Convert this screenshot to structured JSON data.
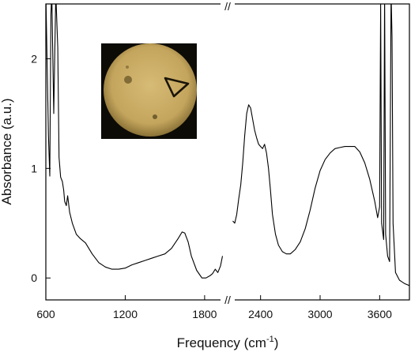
{
  "chart_data": {
    "type": "line",
    "title": "",
    "xlabel": "Frequency (cm",
    "xlabel_sup": "-1",
    "xlabel_close": ")",
    "ylabel": "Absorbance (a.u.)",
    "axis_break": "//",
    "xlim_segments": [
      [
        600,
        1950
      ],
      [
        2100,
        3900
      ]
    ],
    "ylim": [
      -0.2,
      2.5
    ],
    "grid": false,
    "x_ticks": [
      "600",
      "1200",
      "1800",
      "2400",
      "3000",
      "3600"
    ],
    "y_ticks": [
      "0",
      "1",
      "2"
    ],
    "series": [
      {
        "color": "#000000",
        "segments": [
          [
            [
              600,
              2.6
            ],
            [
              620,
              1.3
            ],
            [
              630,
              0.93
            ],
            [
              638,
              2.4
            ],
            [
              645,
              2.6
            ],
            [
              660,
              1.5
            ],
            [
              675,
              2.6
            ],
            [
              690,
              2.1
            ],
            [
              700,
              1.1
            ],
            [
              712,
              0.92
            ],
            [
              725,
              0.88
            ],
            [
              735,
              0.8
            ],
            [
              742,
              0.7
            ],
            [
              755,
              0.66
            ],
            [
              765,
              0.75
            ],
            [
              780,
              0.6
            ],
            [
              800,
              0.5
            ],
            [
              830,
              0.4
            ],
            [
              860,
              0.36
            ],
            [
              900,
              0.32
            ],
            [
              950,
              0.22
            ],
            [
              1000,
              0.14
            ],
            [
              1050,
              0.1
            ],
            [
              1100,
              0.08
            ],
            [
              1150,
              0.08
            ],
            [
              1200,
              0.09
            ],
            [
              1250,
              0.12
            ],
            [
              1300,
              0.14
            ],
            [
              1350,
              0.16
            ],
            [
              1400,
              0.18
            ],
            [
              1450,
              0.2
            ],
            [
              1500,
              0.22
            ],
            [
              1550,
              0.27
            ],
            [
              1600,
              0.36
            ],
            [
              1630,
              0.42
            ],
            [
              1650,
              0.41
            ],
            [
              1675,
              0.33
            ],
            [
              1700,
              0.2
            ],
            [
              1740,
              0.07
            ],
            [
              1780,
              0.0
            ],
            [
              1810,
              0.0
            ],
            [
              1840,
              0.02
            ],
            [
              1860,
              0.04
            ],
            [
              1880,
              0.08
            ],
            [
              1900,
              0.05
            ],
            [
              1920,
              0.11
            ],
            [
              1935,
              0.2
            ]
          ],
          [
            [
              2120,
              0.52
            ],
            [
              2140,
              0.5
            ],
            [
              2160,
              0.58
            ],
            [
              2180,
              0.72
            ],
            [
              2200,
              0.85
            ],
            [
              2220,
              1.05
            ],
            [
              2240,
              1.3
            ],
            [
              2260,
              1.5
            ],
            [
              2280,
              1.58
            ],
            [
              2300,
              1.55
            ],
            [
              2320,
              1.45
            ],
            [
              2340,
              1.35
            ],
            [
              2360,
              1.28
            ],
            [
              2380,
              1.22
            ],
            [
              2400,
              1.2
            ],
            [
              2420,
              1.18
            ],
            [
              2440,
              1.22
            ],
            [
              2460,
              1.14
            ],
            [
              2480,
              1.0
            ],
            [
              2500,
              0.8
            ],
            [
              2520,
              0.58
            ],
            [
              2550,
              0.4
            ],
            [
              2580,
              0.3
            ],
            [
              2620,
              0.24
            ],
            [
              2660,
              0.22
            ],
            [
              2700,
              0.22
            ],
            [
              2750,
              0.26
            ],
            [
              2800,
              0.33
            ],
            [
              2850,
              0.45
            ],
            [
              2900,
              0.62
            ],
            [
              2950,
              0.82
            ],
            [
              3000,
              0.98
            ],
            [
              3050,
              1.08
            ],
            [
              3100,
              1.14
            ],
            [
              3150,
              1.18
            ],
            [
              3200,
              1.19
            ],
            [
              3250,
              1.2
            ],
            [
              3300,
              1.2
            ],
            [
              3350,
              1.2
            ],
            [
              3400,
              1.15
            ],
            [
              3450,
              1.05
            ],
            [
              3500,
              0.9
            ],
            [
              3550,
              0.7
            ],
            [
              3580,
              0.55
            ],
            [
              3600,
              0.65
            ],
            [
              3610,
              2.5
            ],
            [
              3620,
              0.5
            ],
            [
              3640,
              0.35
            ],
            [
              3650,
              2.6
            ],
            [
              3660,
              0.4
            ],
            [
              3680,
              0.2
            ],
            [
              3700,
              0.15
            ],
            [
              3715,
              2.6
            ],
            [
              3725,
              2.2
            ],
            [
              3735,
              0.5
            ],
            [
              3760,
              0.05
            ],
            [
              3800,
              -0.02
            ],
            [
              3850,
              -0.05
            ],
            [
              3900,
              -0.07
            ]
          ]
        ]
      }
    ],
    "inset": {
      "image": "optical micrograph inset: round yellow-brown field of view on black background with a triangular outline"
    }
  },
  "colors": {
    "line": "#000000",
    "inset_background": "#0d0b06",
    "inset_disk": "#c9ab63",
    "inset_disk_edge": "#8a7237"
  }
}
